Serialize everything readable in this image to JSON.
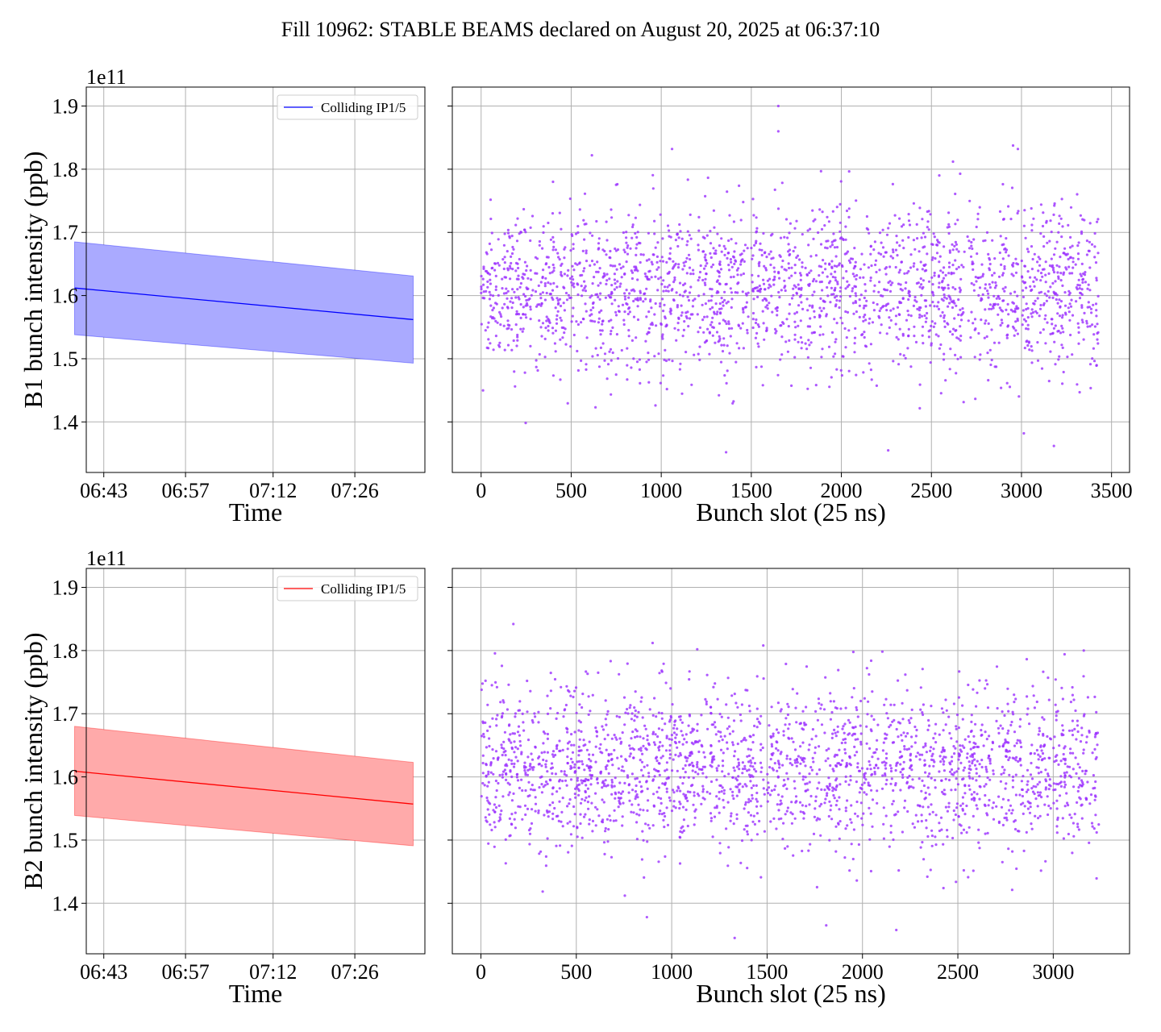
{
  "title": "Fill 10962: STABLE BEAMS declared on August 20, 2025 at 06:37:10",
  "colors": {
    "b1": "#0000ff",
    "b1_band": "#aaaaff",
    "b2": "#ff0000",
    "b2_band": "#ffaaaa",
    "scatter": "#9b30ff",
    "grid": "#b0b0b0"
  },
  "chart_data": [
    {
      "id": "b1-time",
      "type": "line",
      "title": "",
      "xlabel": "Time",
      "ylabel": "B1 bunch intensity (ppb)",
      "y_offset_label": "1e11",
      "x_tick_labels": [
        "06:43",
        "06:57",
        "07:12",
        "07:26"
      ],
      "x_ticks_minutes": [
        "06:43",
        "06:57",
        "07:12",
        "07:26"
      ],
      "x_range": [
        "06:40",
        "07:38"
      ],
      "y_ticks": [
        1.4,
        1.5,
        1.6,
        1.7,
        1.8,
        1.9
      ],
      "ylim": [
        1.32,
        1.93
      ],
      "grid": true,
      "legend_position": "top-right",
      "series": [
        {
          "name": "Colliding IP1/5",
          "x": [
            "06:38",
            "07:36"
          ],
          "mean": [
            1.612,
            1.562
          ],
          "lower": [
            1.538,
            1.493
          ],
          "upper": [
            1.685,
            1.631
          ]
        }
      ]
    },
    {
      "id": "b1-slots",
      "type": "scatter",
      "title": "",
      "xlabel": "Bunch slot (25 ns)",
      "ylabel": "",
      "x_tick_labels": [
        "0",
        "500",
        "1000",
        "1500",
        "2000",
        "2500",
        "3000",
        "3500"
      ],
      "xlim": [
        -160,
        3600
      ],
      "ylim": [
        1.32,
        1.93
      ],
      "grid": true,
      "n_points_approx": 2400,
      "slot_range": [
        0,
        3430
      ],
      "mean": 1.61,
      "spread_sd": 0.065,
      "y_min": 1.352,
      "y_max": 1.9,
      "notable_points": [
        {
          "x": 1650,
          "y": 1.9
        },
        {
          "x": 1650,
          "y": 1.86
        },
        {
          "x": 2980,
          "y": 1.832
        },
        {
          "x": 1060,
          "y": 1.832
        },
        {
          "x": 615,
          "y": 1.822
        },
        {
          "x": 1360,
          "y": 1.352
        },
        {
          "x": 2260,
          "y": 1.355
        },
        {
          "x": 3180,
          "y": 1.362
        }
      ]
    },
    {
      "id": "b2-time",
      "type": "line",
      "title": "",
      "xlabel": "Time",
      "ylabel": "B2 bunch intensity (ppb)",
      "y_offset_label": "1e11",
      "x_tick_labels": [
        "06:43",
        "06:57",
        "07:12",
        "07:26"
      ],
      "x_ticks_minutes": [
        "06:43",
        "06:57",
        "07:12",
        "07:26"
      ],
      "x_range": [
        "06:40",
        "07:38"
      ],
      "y_ticks": [
        1.4,
        1.5,
        1.6,
        1.7,
        1.8,
        1.9
      ],
      "ylim": [
        1.32,
        1.93
      ],
      "grid": true,
      "legend_position": "top-right",
      "series": [
        {
          "name": "Colliding IP1/5",
          "x": [
            "06:38",
            "07:36"
          ],
          "mean": [
            1.609,
            1.557
          ],
          "lower": [
            1.539,
            1.491
          ],
          "upper": [
            1.68,
            1.623
          ]
        }
      ]
    },
    {
      "id": "b2-slots",
      "type": "scatter",
      "title": "",
      "xlabel": "Bunch slot (25 ns)",
      "ylabel": "",
      "x_tick_labels": [
        "0",
        "500",
        "1000",
        "1500",
        "2000",
        "2500",
        "3000"
      ],
      "xlim": [
        -150,
        3400
      ],
      "ylim": [
        1.32,
        1.93
      ],
      "grid": true,
      "n_points_approx": 2400,
      "slot_range": [
        0,
        3240
      ],
      "mean": 1.61,
      "spread_sd": 0.065,
      "y_min": 1.345,
      "y_max": 1.842,
      "notable_points": [
        {
          "x": 170,
          "y": 1.842
        },
        {
          "x": 900,
          "y": 1.812
        },
        {
          "x": 1480,
          "y": 1.808
        },
        {
          "x": 3160,
          "y": 1.8
        },
        {
          "x": 1330,
          "y": 1.345
        },
        {
          "x": 1810,
          "y": 1.365
        },
        {
          "x": 870,
          "y": 1.378
        }
      ]
    }
  ]
}
